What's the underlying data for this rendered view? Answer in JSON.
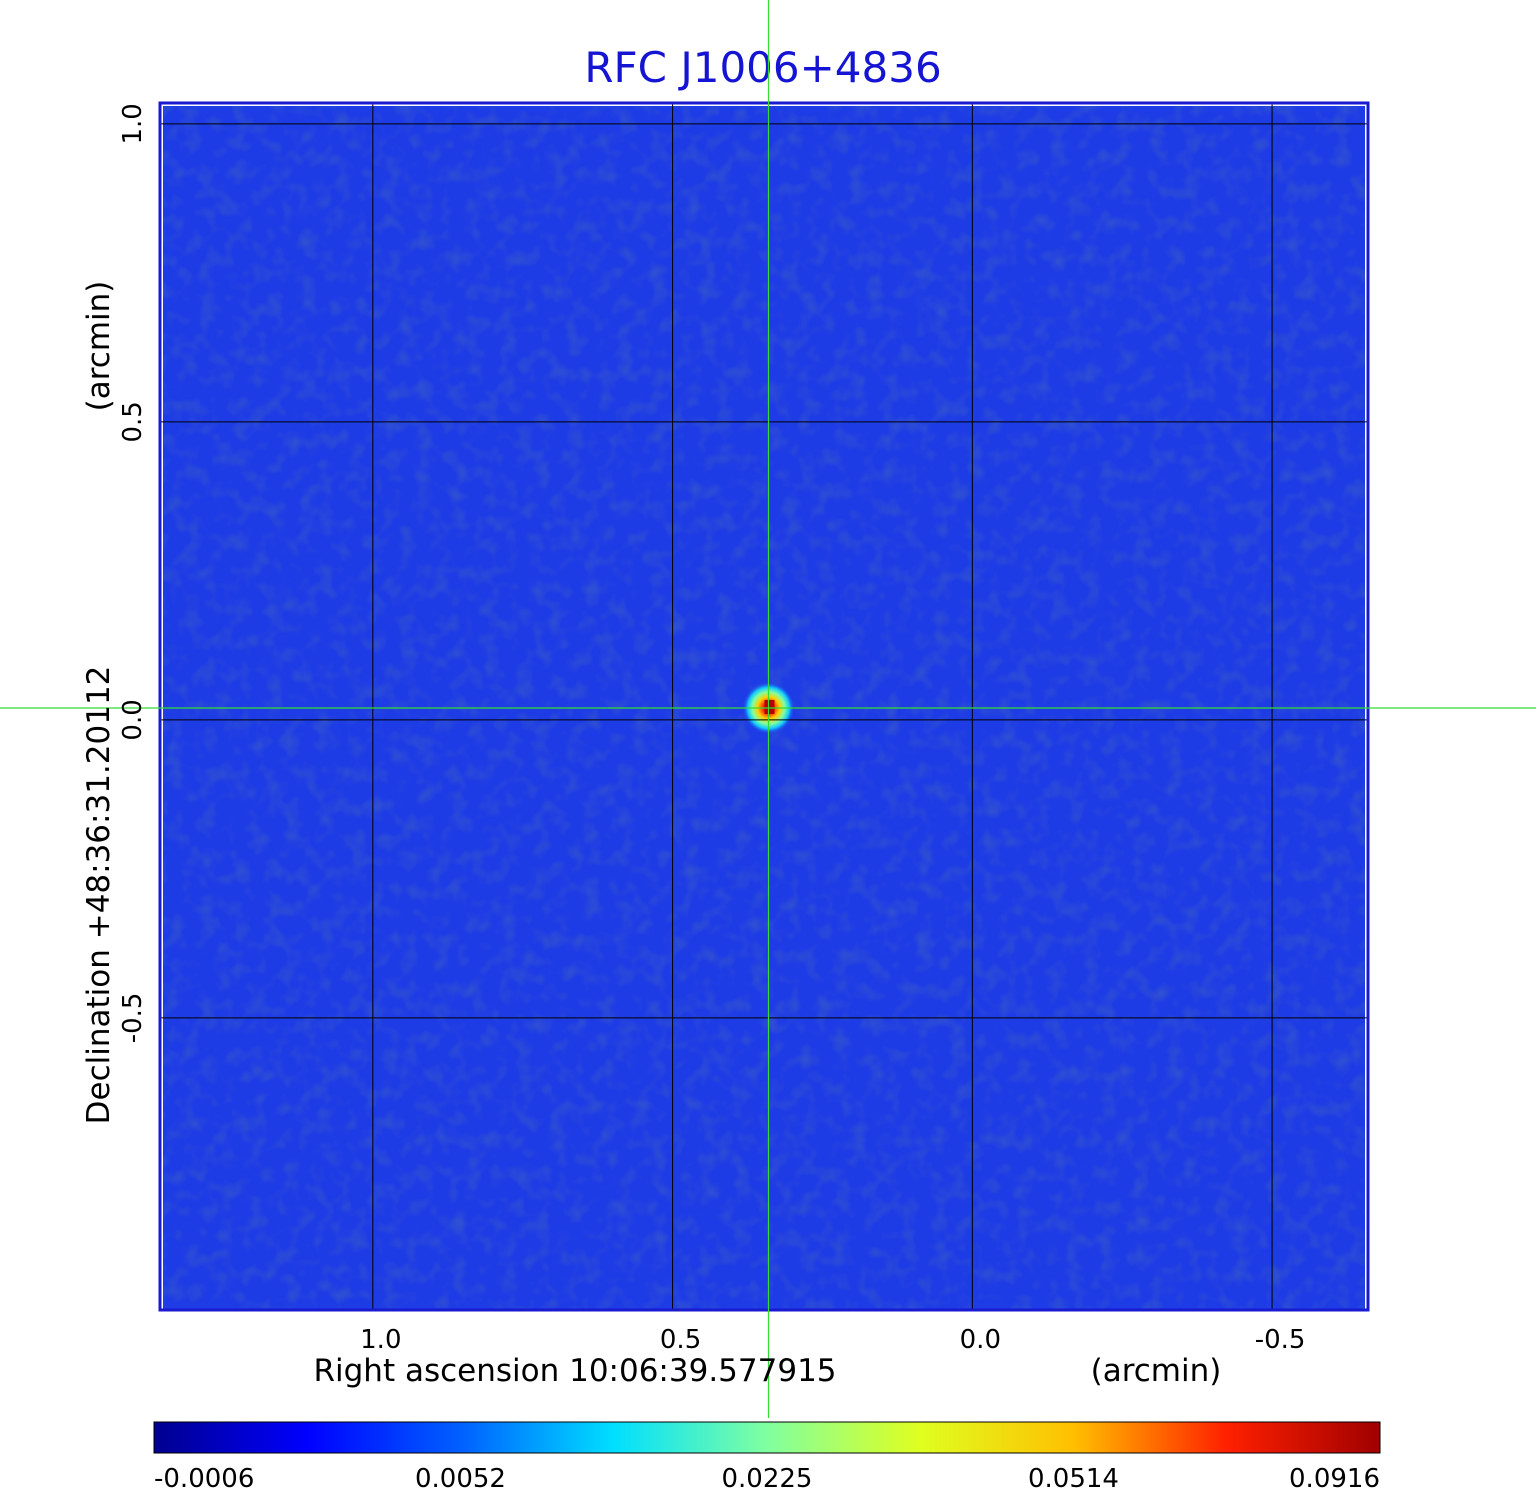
{
  "chart_data": {
    "type": "heatmap",
    "title": "RFC J1006+4836",
    "xlabel": "Right ascension  10:06:39.577915",
    "xunit": "(arcmin)",
    "ylabel": "Declination  +48:36:31.20112",
    "yunit": "(arcmin)",
    "xlim": [
      1.355,
      -0.66
    ],
    "ylim": [
      -0.99,
      1.035
    ],
    "x_ticks": [
      {
        "value": 1.0,
        "label": "1.0"
      },
      {
        "value": 0.5,
        "label": "0.5"
      },
      {
        "value": 0.0,
        "label": "0.0"
      },
      {
        "value": -0.5,
        "label": "-0.5"
      }
    ],
    "y_ticks": [
      {
        "value": 1.0,
        "label": "1.0"
      },
      {
        "value": 0.5,
        "label": "0.5"
      },
      {
        "value": 0.0,
        "label": "0.0"
      },
      {
        "value": -0.5,
        "label": "-0.5"
      }
    ],
    "grid": true,
    "crosshair": {
      "x": 0.34,
      "y": 0.02
    },
    "source": {
      "x": 0.34,
      "y": 0.02,
      "peak": 0.0916
    },
    "colorbar": {
      "min": -0.0006,
      "max": 0.0916,
      "tick_labels": [
        "-0.0006",
        "0.0052",
        "0.0225",
        "0.0514",
        "0.0916"
      ],
      "colormap": "jet"
    }
  },
  "colors": {
    "title": "#1414d2",
    "background_field": "#1e3ce6",
    "frame": "#1a1ad0",
    "crosshair": "#33dd33",
    "grid": "#000000"
  }
}
